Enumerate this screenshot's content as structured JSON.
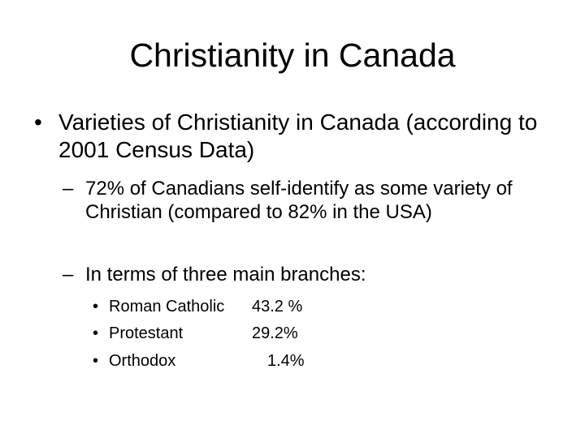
{
  "slide": {
    "title": "Christianity in Canada",
    "bullet": {
      "marker": "•",
      "text": "Varieties of Christianity in Canada (according to 2001 Census Data)"
    },
    "subpoints": [
      {
        "marker": "–",
        "text": "72% of Canadians self-identify as some variety of Christian (compared to 82% in the USA)"
      },
      {
        "marker": "–",
        "text": "In terms of three main branches:"
      }
    ],
    "branches": [
      {
        "marker": "•",
        "name": "Roman Catholic",
        "percent": "43.2 %"
      },
      {
        "marker": "•",
        "name": "Protestant",
        "percent": "29.2%"
      },
      {
        "marker": "•",
        "name": "Orthodox",
        "percent": "1.4%"
      }
    ]
  }
}
